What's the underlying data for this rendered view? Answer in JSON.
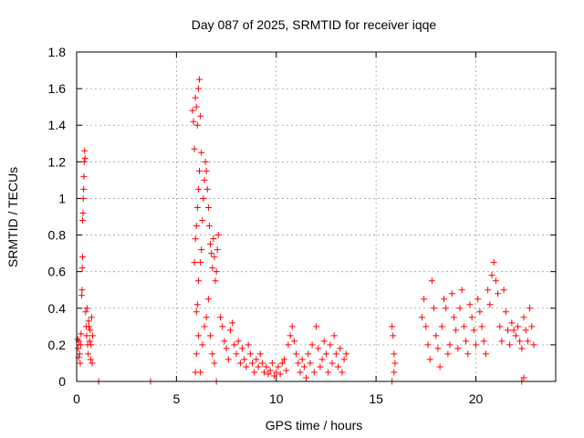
{
  "chart_data": {
    "type": "scatter",
    "title": "Day 087 of 2025, SRMTID for receiver iqqe",
    "xlabel": "GPS time / hours",
    "ylabel": "SRMTID / TECUs",
    "xlim": [
      0,
      24
    ],
    "ylim": [
      0,
      1.8
    ],
    "xticks": [
      0,
      5,
      10,
      15,
      20
    ],
    "yticks": [
      0,
      0.2,
      0.4,
      0.6,
      0.8,
      1,
      1.2,
      1.4,
      1.6,
      1.8
    ],
    "grid": true,
    "marker": "+",
    "marker_color": "#ff0000",
    "series": [
      {
        "name": "SRMTID",
        "points": [
          [
            0.05,
            0.23
          ],
          [
            0.08,
            0.18
          ],
          [
            0.1,
            0.13
          ],
          [
            0.12,
            0.22
          ],
          [
            0.15,
            0.15
          ],
          [
            0.18,
            0.1
          ],
          [
            0.2,
            0.2
          ],
          [
            0.22,
            0.26
          ],
          [
            0.25,
            0.47
          ],
          [
            0.27,
            0.5
          ],
          [
            0.28,
            0.62
          ],
          [
            0.3,
            0.68
          ],
          [
            0.3,
            0.88
          ],
          [
            0.32,
            0.92
          ],
          [
            0.33,
            1.0
          ],
          [
            0.35,
            1.05
          ],
          [
            0.36,
            1.12
          ],
          [
            0.38,
            1.2
          ],
          [
            0.4,
            1.26
          ],
          [
            0.42,
            1.22
          ],
          [
            0.45,
            0.38
          ],
          [
            0.48,
            0.3
          ],
          [
            0.5,
            0.25
          ],
          [
            0.52,
            0.4
          ],
          [
            0.55,
            0.2
          ],
          [
            0.58,
            0.15
          ],
          [
            0.6,
            0.33
          ],
          [
            0.62,
            0.3
          ],
          [
            0.65,
            0.22
          ],
          [
            0.68,
            0.28
          ],
          [
            0.7,
            0.12
          ],
          [
            0.72,
            0.2
          ],
          [
            0.75,
            0.35
          ],
          [
            0.78,
            0.1
          ],
          [
            0.8,
            0.25
          ],
          [
            1.1,
            0.0
          ],
          [
            3.7,
            0.0
          ],
          [
            5.8,
            1.48
          ],
          [
            5.85,
            1.42
          ],
          [
            5.9,
            1.27
          ],
          [
            5.95,
            1.55
          ],
          [
            6.0,
            1.5
          ],
          [
            6.05,
            1.4
          ],
          [
            6.1,
            1.6
          ],
          [
            6.15,
            1.65
          ],
          [
            6.2,
            1.45
          ],
          [
            6.25,
            1.25
          ],
          [
            5.9,
            0.65
          ],
          [
            5.95,
            0.78
          ],
          [
            6.0,
            0.85
          ],
          [
            6.05,
            0.95
          ],
          [
            6.1,
            1.05
          ],
          [
            6.15,
            1.15
          ],
          [
            6.0,
            0.38
          ],
          [
            6.05,
            0.42
          ],
          [
            6.1,
            0.55
          ],
          [
            6.2,
            0.65
          ],
          [
            6.25,
            0.72
          ],
          [
            6.3,
            0.88
          ],
          [
            6.35,
            1.0
          ],
          [
            6.4,
            1.1
          ],
          [
            6.45,
            1.2
          ],
          [
            6.5,
            1.15
          ],
          [
            6.55,
            1.05
          ],
          [
            6.6,
            0.95
          ],
          [
            6.65,
            0.85
          ],
          [
            6.7,
            0.75
          ],
          [
            6.75,
            0.7
          ],
          [
            6.8,
            0.62
          ],
          [
            6.85,
            0.78
          ],
          [
            6.9,
            0.68
          ],
          [
            6.95,
            0.55
          ],
          [
            7.0,
            0.6
          ],
          [
            7.05,
            0.72
          ],
          [
            7.1,
            0.8
          ],
          [
            5.95,
            0.05
          ],
          [
            6.0,
            0.15
          ],
          [
            6.1,
            0.25
          ],
          [
            6.2,
            0.05
          ],
          [
            6.3,
            0.2
          ],
          [
            6.4,
            0.3
          ],
          [
            6.5,
            0.35
          ],
          [
            6.6,
            0.45
          ],
          [
            6.7,
            0.25
          ],
          [
            6.8,
            0.15
          ],
          [
            6.9,
            0.1
          ],
          [
            7.0,
            0.0
          ],
          [
            7.2,
            0.35
          ],
          [
            7.3,
            0.3
          ],
          [
            7.4,
            0.22
          ],
          [
            7.5,
            0.18
          ],
          [
            7.6,
            0.12
          ],
          [
            7.7,
            0.28
          ],
          [
            7.8,
            0.32
          ],
          [
            7.9,
            0.2
          ],
          [
            8.0,
            0.15
          ],
          [
            8.1,
            0.22
          ],
          [
            8.2,
            0.1
          ],
          [
            8.3,
            0.18
          ],
          [
            8.4,
            0.12
          ],
          [
            8.5,
            0.08
          ],
          [
            8.6,
            0.2
          ],
          [
            8.7,
            0.15
          ],
          [
            8.8,
            0.1
          ],
          [
            8.9,
            0.05
          ],
          [
            9.0,
            0.12
          ],
          [
            9.1,
            0.08
          ],
          [
            9.2,
            0.15
          ],
          [
            9.3,
            0.1
          ],
          [
            9.4,
            0.05
          ],
          [
            9.5,
            0.08
          ],
          [
            9.6,
            0.04
          ],
          [
            9.7,
            0.06
          ],
          [
            9.8,
            0.1
          ],
          [
            9.9,
            0.03
          ],
          [
            10.0,
            0.05
          ],
          [
            10.1,
            0.08
          ],
          [
            10.2,
            0.04
          ],
          [
            10.3,
            0.1
          ],
          [
            10.4,
            0.12
          ],
          [
            10.5,
            0.06
          ],
          [
            10.6,
            0.2
          ],
          [
            10.7,
            0.25
          ],
          [
            10.8,
            0.3
          ],
          [
            10.9,
            0.22
          ],
          [
            11.0,
            0.15
          ],
          [
            11.1,
            0.1
          ],
          [
            11.2,
            0.05
          ],
          [
            11.3,
            0.12
          ],
          [
            11.4,
            0.08
          ],
          [
            11.5,
            0.02
          ],
          [
            11.6,
            0.15
          ],
          [
            11.7,
            0.1
          ],
          [
            11.8,
            0.2
          ],
          [
            11.9,
            0.05
          ],
          [
            12.0,
            0.3
          ],
          [
            12.1,
            0.18
          ],
          [
            12.2,
            0.08
          ],
          [
            12.3,
            0.12
          ],
          [
            12.4,
            0.22
          ],
          [
            12.5,
            0.15
          ],
          [
            12.6,
            0.05
          ],
          [
            12.7,
            0.2
          ],
          [
            12.8,
            0.1
          ],
          [
            12.9,
            0.25
          ],
          [
            13.0,
            0.15
          ],
          [
            13.1,
            0.08
          ],
          [
            13.2,
            0.18
          ],
          [
            13.3,
            0.05
          ],
          [
            13.4,
            0.12
          ],
          [
            13.5,
            0.15
          ],
          [
            15.8,
            0.3
          ],
          [
            15.85,
            0.25
          ],
          [
            15.9,
            0.15
          ],
          [
            15.95,
            0.1
          ],
          [
            15.8,
            0.0
          ],
          [
            15.9,
            0.05
          ],
          [
            17.3,
            0.35
          ],
          [
            17.4,
            0.45
          ],
          [
            17.5,
            0.3
          ],
          [
            17.6,
            0.2
          ],
          [
            17.7,
            0.12
          ],
          [
            17.8,
            0.55
          ],
          [
            17.9,
            0.4
          ],
          [
            18.0,
            0.25
          ],
          [
            18.1,
            0.18
          ],
          [
            18.2,
            0.08
          ],
          [
            18.3,
            0.3
          ],
          [
            18.4,
            0.45
          ],
          [
            18.5,
            0.4
          ],
          [
            18.6,
            0.15
          ],
          [
            18.7,
            0.2
          ],
          [
            18.8,
            0.48
          ],
          [
            18.9,
            0.35
          ],
          [
            19.0,
            0.28
          ],
          [
            19.1,
            0.18
          ],
          [
            19.2,
            0.4
          ],
          [
            19.3,
            0.5
          ],
          [
            19.4,
            0.3
          ],
          [
            19.5,
            0.22
          ],
          [
            19.6,
            0.15
          ],
          [
            19.7,
            0.42
          ],
          [
            19.8,
            0.35
          ],
          [
            19.9,
            0.28
          ],
          [
            20.0,
            0.2
          ],
          [
            20.1,
            0.45
          ],
          [
            20.2,
            0.38
          ],
          [
            20.3,
            0.3
          ],
          [
            20.4,
            0.22
          ],
          [
            20.5,
            0.15
          ],
          [
            20.6,
            0.5
          ],
          [
            20.7,
            0.42
          ],
          [
            20.8,
            0.58
          ],
          [
            20.9,
            0.65
          ],
          [
            21.0,
            0.55
          ],
          [
            21.1,
            0.48
          ],
          [
            21.2,
            0.3
          ],
          [
            21.3,
            0.22
          ],
          [
            21.4,
            0.5
          ],
          [
            21.5,
            0.38
          ],
          [
            21.6,
            0.28
          ],
          [
            21.7,
            0.2
          ],
          [
            21.8,
            0.32
          ],
          [
            21.9,
            0.28
          ],
          [
            22.0,
            0.25
          ],
          [
            22.1,
            0.3
          ],
          [
            22.2,
            0.22
          ],
          [
            22.3,
            0.18
          ],
          [
            22.4,
            0.35
          ],
          [
            22.5,
            0.28
          ],
          [
            22.6,
            0.22
          ],
          [
            22.7,
            0.4
          ],
          [
            22.8,
            0.3
          ],
          [
            22.9,
            0.2
          ],
          [
            22.3,
            0.0
          ],
          [
            22.4,
            0.02
          ]
        ]
      }
    ]
  }
}
